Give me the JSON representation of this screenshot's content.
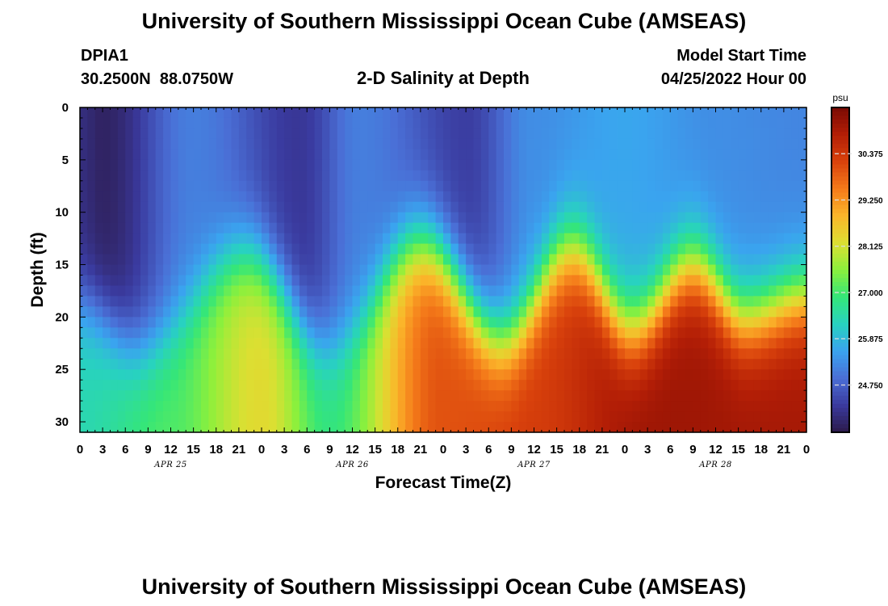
{
  "header": {
    "title": "University of Southern Mississippi Ocean Cube (AMSEAS)",
    "station_id": "DPIA1",
    "station_coords": "30.2500N  88.0750W",
    "subtitle": "2-D Salinity at Depth",
    "model_start_label": "Model Start Time",
    "model_start_value": "04/25/2022 Hour 00"
  },
  "footer": {
    "title": "University of Southern Mississippi Ocean Cube (AMSEAS)"
  },
  "chart_data": {
    "type": "heatmap",
    "xlabel": "Forecast Time(Z)",
    "ylabel": "Depth (ft)",
    "x_hours_range": [
      0,
      96
    ],
    "y_range": [
      0,
      31
    ],
    "y_inverted": true,
    "x_tick_labels": [
      "0",
      "3",
      "6",
      "9",
      "12",
      "15",
      "18",
      "21",
      "0",
      "3",
      "6",
      "9",
      "12",
      "15",
      "18",
      "21",
      "0",
      "3",
      "6",
      "9",
      "12",
      "15",
      "18",
      "21",
      "0",
      "3",
      "6",
      "9",
      "12",
      "15",
      "18",
      "21",
      "0"
    ],
    "date_labels": [
      {
        "label": "APR 25",
        "hour": 12
      },
      {
        "label": "APR 26",
        "hour": 36
      },
      {
        "label": "APR 27",
        "hour": 60
      },
      {
        "label": "APR 28",
        "hour": 84
      }
    ],
    "y_ticks": [
      0,
      5,
      10,
      15,
      20,
      25,
      30
    ],
    "colorbar": {
      "unit": "psu",
      "range": [
        23.6,
        31.5
      ],
      "ticks": [
        "24.750",
        "25.875",
        "27.000",
        "28.125",
        "29.250",
        "30.375"
      ],
      "colors": [
        "#2c1a4a",
        "#3a3a9e",
        "#4a6fd6",
        "#3aa4ef",
        "#28d2c0",
        "#35e678",
        "#8cf03c",
        "#dcdf32",
        "#fbb52a",
        "#f47a1a",
        "#d9420c",
        "#b31e06",
        "#7a0a04"
      ]
    },
    "halocline_depth_ft": [
      {
        "hour": 0,
        "depth": 19
      },
      {
        "hour": 8,
        "depth": 23
      },
      {
        "hour": 22,
        "depth": 14
      },
      {
        "hour": 33,
        "depth": 23
      },
      {
        "hour": 45,
        "depth": 13
      },
      {
        "hour": 56,
        "depth": 22
      },
      {
        "hour": 65,
        "depth": 13.5
      },
      {
        "hour": 73,
        "depth": 21
      },
      {
        "hour": 81,
        "depth": 15
      },
      {
        "hour": 88,
        "depth": 20
      },
      {
        "hour": 96,
        "depth": 18
      }
    ],
    "upper_layer_salinity_psu": [
      {
        "hour": 0,
        "value": 24.0
      },
      {
        "hour": 3,
        "value": 23.8
      },
      {
        "hour": 15,
        "value": 25.1
      },
      {
        "hour": 29,
        "value": 24.2
      },
      {
        "hour": 37,
        "value": 25.1
      },
      {
        "hour": 51,
        "value": 24.3
      },
      {
        "hour": 60,
        "value": 25.3
      },
      {
        "hour": 72,
        "value": 25.6
      },
      {
        "hour": 84,
        "value": 25.3
      },
      {
        "hour": 96,
        "value": 25.2
      }
    ],
    "bottom_salinity_psu": [
      {
        "hour": 0,
        "value": 26.4
      },
      {
        "hour": 12,
        "value": 27.1
      },
      {
        "hour": 24,
        "value": 28.3
      },
      {
        "hour": 33,
        "value": 26.9
      },
      {
        "hour": 48,
        "value": 30.0
      },
      {
        "hour": 60,
        "value": 30.3
      },
      {
        "hour": 75,
        "value": 31.1
      },
      {
        "hour": 96,
        "value": 31.0
      }
    ]
  }
}
